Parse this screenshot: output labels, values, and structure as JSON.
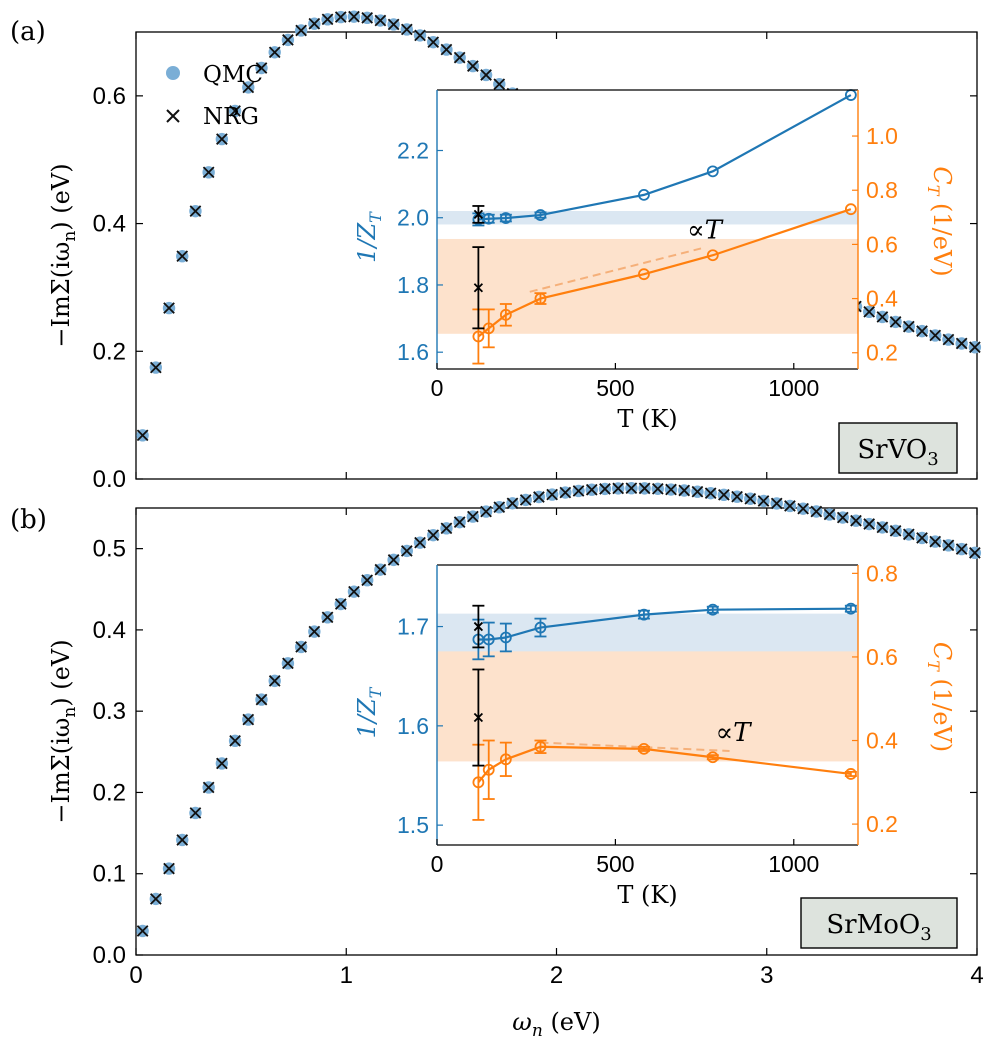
{
  "colors": {
    "qmc": "#7aaed6",
    "blue": "#1f77b4",
    "orange": "#ff7f0e",
    "black": "#000000",
    "blue_band": "#dbe7f2",
    "orange_band": "#fde2cc",
    "label_box": "#dde3dd"
  },
  "chart_data": [
    {
      "id": "a",
      "type": "scatter",
      "panel_label": "(a)",
      "material_label": "SrVO3",
      "material_base": "SrVO",
      "material_sub": "3",
      "xlabel": "",
      "ylabel": "−ImΣ(iω_n) (eV)",
      "ylabel_main": "−ImΣ(iω",
      "ylabel_sub": "n",
      "ylabel_end": ") (eV)",
      "xlim": [
        0,
        4
      ],
      "ylim": [
        0,
        0.7
      ],
      "xticks": [
        0,
        1,
        2,
        3,
        4
      ],
      "yticks": [
        0.0,
        0.2,
        0.4,
        0.6
      ],
      "ytick_labels": [
        "0.0",
        "0.2",
        "0.4",
        "0.6"
      ],
      "xtick_labels": [],
      "legend": [
        {
          "name": "QMC",
          "marker": "circle"
        },
        {
          "name": "NRG",
          "marker": "x"
        }
      ],
      "series": [
        {
          "name": "QMC",
          "function": "0.70*w*exp(1-w) + 0.014*w + 0.010, sampled at omega_n = (2n+1)*pi*T, T = 0.01 eV, n = 0..63"
        },
        {
          "name": "NRG",
          "function": "same as QMC at the same Matsubara frequencies"
        }
      ],
      "inset": {
        "xlabel": "T (K)",
        "xlim": [
          0,
          1180
        ],
        "xticks": [
          0,
          500,
          1000
        ],
        "left_axis": {
          "label": "1/Z_T",
          "label_main": "1/Z",
          "label_sub": "T",
          "ylim": [
            1.55,
            2.38
          ],
          "ticks": [
            1.6,
            1.8,
            2.0,
            2.2
          ],
          "tick_labels": [
            "1.6",
            "1.8",
            "2.0",
            "2.2"
          ]
        },
        "right_axis": {
          "label": "C_T (1/eV)",
          "label_main": "C",
          "label_sub": "T",
          "label_end": " (1/eV)",
          "ylim": [
            0.14,
            1.17
          ],
          "ticks": [
            0.2,
            0.4,
            0.6,
            0.8,
            1.0
          ],
          "tick_labels": [
            "0.2",
            "0.4",
            "0.6",
            "0.8",
            "1.0"
          ]
        },
        "inv_z": {
          "T": [
            116,
            145,
            193,
            290,
            580,
            773,
            1160
          ],
          "values": [
            1.995,
            1.997,
            1.999,
            2.008,
            2.068,
            2.138,
            2.365
          ],
          "errors": [
            0.018,
            0.012,
            0.01,
            0.008,
            0,
            0,
            0
          ]
        },
        "c_t": {
          "T": [
            116,
            145,
            193,
            290,
            580,
            773,
            1160
          ],
          "values": [
            0.26,
            0.29,
            0.34,
            0.4,
            0.49,
            0.56,
            0.73
          ],
          "errors": [
            0.1,
            0.07,
            0.04,
            0.02,
            0,
            0,
            0
          ]
        },
        "nrg_inv_z": {
          "T": 116,
          "value": 2.01,
          "error": 0.025
        },
        "nrg_c_t": {
          "T": 116,
          "value": 0.44,
          "error": 0.15
        },
        "blue_band": [
          1.98,
          2.02
        ],
        "orange_band": [
          0.27,
          0.62
        ],
        "guide_line": {
          "label": "∝T",
          "T": [
            260,
            740
          ],
          "values": [
            0.425,
            0.585
          ]
        }
      }
    },
    {
      "id": "b",
      "type": "scatter",
      "panel_label": "(b)",
      "material_label": "SrMoO3",
      "material_base": "SrMoO",
      "material_sub": "3",
      "xlabel": "ω_n (eV)",
      "xlabel_main": "ω",
      "xlabel_sub": "n",
      "xlabel_end": " (eV)",
      "ylabel": "−ImΣ(iω_n) (eV)",
      "ylabel_main": "−ImΣ(iω",
      "ylabel_sub": "n",
      "ylabel_end": ") (eV)",
      "xlim": [
        0,
        4
      ],
      "ylim": [
        0,
        0.55
      ],
      "xticks": [
        0,
        1,
        2,
        3,
        4
      ],
      "xtick_labels": [
        "0",
        "1",
        "2",
        "3",
        "4"
      ],
      "yticks": [
        0.0,
        0.1,
        0.2,
        0.3,
        0.4,
        0.5
      ],
      "ytick_labels": [
        "0.0",
        "0.1",
        "0.2",
        "0.3",
        "0.4",
        "0.5"
      ],
      "series": [
        {
          "name": "QMC",
          "function": "0.54*w*exp(1-w) + 0.011*w + 0.009, with w = omega/2.25, sampled at omega_n = (2n+1)*pi*T, T = 0.01 eV, n = 0..63"
        },
        {
          "name": "NRG",
          "function": "same as QMC at the same Matsubara frequencies"
        }
      ],
      "inset": {
        "xlabel": "T (K)",
        "xlim": [
          0,
          1180
        ],
        "xticks": [
          0,
          500,
          1000
        ],
        "left_axis": {
          "label": "1/Z_T",
          "label_main": "1/Z",
          "label_sub": "T",
          "ylim": [
            1.48,
            1.762
          ],
          "ticks": [
            1.5,
            1.6,
            1.7
          ],
          "tick_labels": [
            "1.5",
            "1.6",
            "1.7"
          ]
        },
        "right_axis": {
          "label": "C_T (1/eV)",
          "label_main": "C",
          "label_sub": "T",
          "label_end": " (1/eV)",
          "ylim": [
            0.15,
            0.82
          ],
          "ticks": [
            0.2,
            0.4,
            0.6,
            0.8
          ],
          "tick_labels": [
            "0.2",
            "0.4",
            "0.6",
            "0.8"
          ]
        },
        "inv_z": {
          "T": [
            116,
            145,
            193,
            290,
            580,
            773,
            1160
          ],
          "values": [
            1.687,
            1.687,
            1.689,
            1.699,
            1.712,
            1.717,
            1.718
          ],
          "errors": [
            0.02,
            0.017,
            0.014,
            0.009,
            0.004,
            0.003,
            0.003
          ]
        },
        "c_t": {
          "T": [
            116,
            145,
            193,
            290,
            580,
            773,
            1160
          ],
          "values": [
            0.3,
            0.33,
            0.355,
            0.385,
            0.38,
            0.36,
            0.32
          ],
          "errors": [
            0.09,
            0.07,
            0.04,
            0.015,
            0.005,
            0.005,
            0.005
          ]
        },
        "nrg_inv_z": {
          "T": 116,
          "value": 1.7,
          "error": 0.021
        },
        "nrg_c_t": {
          "T": 116,
          "value": 0.455,
          "error": 0.115
        },
        "blue_band": [
          1.675,
          1.713
        ],
        "orange_band": [
          0.35,
          0.655
        ],
        "guide_line": {
          "label": "∝T",
          "T": [
            290,
            820
          ],
          "values": [
            0.395,
            0.375
          ]
        }
      }
    }
  ]
}
